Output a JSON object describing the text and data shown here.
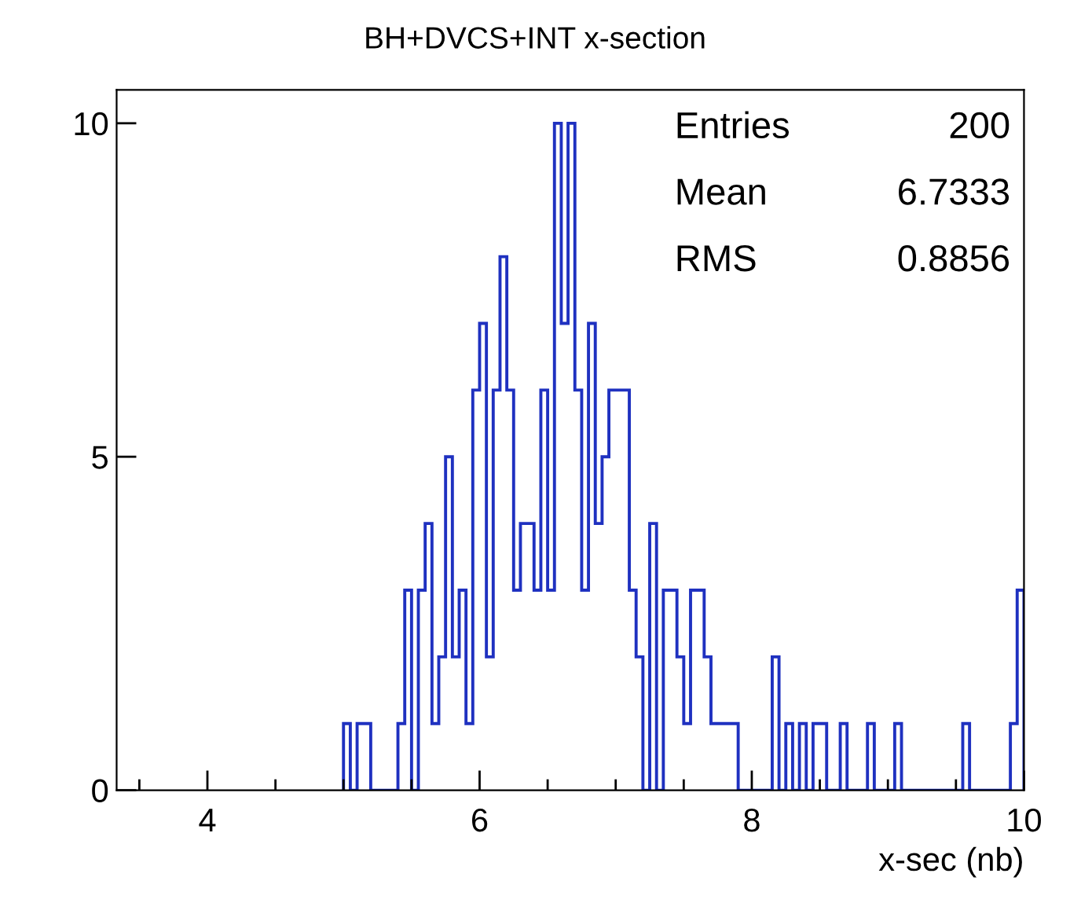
{
  "chart_data": {
    "type": "histogram",
    "title": "BH+DVCS+INT x-section",
    "xlabel": "x-sec (nb)",
    "bins": [
      5.0,
      5.05,
      5.1,
      5.15,
      5.2,
      5.25,
      5.3,
      5.35,
      5.4,
      5.45,
      5.5,
      5.55,
      5.6,
      5.65,
      5.7,
      5.75,
      5.8,
      5.85,
      5.9,
      5.95,
      6.0,
      6.05,
      6.1,
      6.15,
      6.2,
      6.25,
      6.3,
      6.35,
      6.4,
      6.45,
      6.5,
      6.55,
      6.6,
      6.65,
      6.7,
      6.75,
      6.8,
      6.85,
      6.9,
      6.95,
      7.0,
      7.05,
      7.1,
      7.15,
      7.2,
      7.25,
      7.3,
      7.35,
      7.4,
      7.45,
      7.5,
      7.55,
      7.6,
      7.65,
      7.7,
      7.75,
      7.8,
      7.85,
      7.9,
      7.95,
      8.0,
      8.05,
      8.1,
      8.15,
      8.2,
      8.25,
      8.3,
      8.35,
      8.4,
      8.45,
      8.5,
      8.55,
      8.6,
      8.65,
      8.7,
      8.75,
      8.8,
      8.85,
      8.9,
      8.95,
      9.0,
      9.05,
      9.1,
      9.15,
      9.2,
      9.25,
      9.3,
      9.35,
      9.4,
      9.45,
      9.5,
      9.55,
      9.6,
      9.65,
      9.7,
      9.75,
      9.8,
      9.85,
      9.9,
      9.95,
      10.0
    ],
    "values": [
      1,
      0,
      1,
      1,
      0,
      0,
      0,
      0,
      1,
      3,
      0,
      3,
      4,
      1,
      2,
      5,
      2,
      3,
      1,
      6,
      7,
      2,
      6,
      8,
      6,
      3,
      4,
      4,
      3,
      6,
      3,
      10,
      7,
      10,
      6,
      3,
      7,
      4,
      5,
      6,
      6,
      6,
      3,
      2,
      0,
      4,
      0,
      3,
      3,
      2,
      1,
      3,
      3,
      2,
      1,
      1,
      1,
      1,
      0,
      0,
      0,
      0,
      0,
      2,
      0,
      1,
      0,
      1,
      0,
      1,
      1,
      0,
      0,
      1,
      0,
      0,
      0,
      1,
      0,
      0,
      0,
      1,
      0,
      0,
      0,
      0,
      0,
      0,
      0,
      0,
      0,
      1,
      0,
      0,
      0,
      0,
      0,
      0,
      1,
      3
    ],
    "color": "#1f31c0",
    "xlim": [
      3.333,
      10
    ],
    "ylim": [
      0,
      10.5
    ],
    "xticks": [
      {
        "value": 3.5,
        "label": null
      },
      4,
      {
        "value": 4.5,
        "label": null
      },
      {
        "value": 5,
        "label": null
      },
      {
        "value": 5.5,
        "label": null
      },
      6,
      {
        "value": 6.5,
        "label": null
      },
      {
        "value": 7,
        "label": null
      },
      {
        "value": 7.5,
        "label": null
      },
      8,
      {
        "value": 8.5,
        "label": null
      },
      {
        "value": 9,
        "label": null
      },
      {
        "value": 9.5,
        "label": null
      },
      10
    ],
    "yticks": [
      0,
      5,
      10
    ],
    "grid": false,
    "annotations": [
      "Entries 200",
      "Mean 6.7333",
      "RMS 0.8856"
    ]
  }
}
